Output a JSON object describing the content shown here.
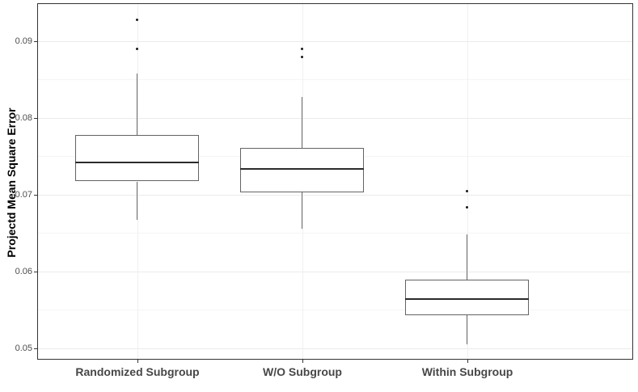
{
  "chart_data": {
    "type": "boxplot",
    "title": "",
    "xlabel": "",
    "ylabel": "Projectd Mean Square Error",
    "categories": [
      "Randomized Subgroup",
      "W/O Subgroup",
      "Within Subgroup"
    ],
    "y_ticks": [
      0.05,
      0.06,
      0.07,
      0.08,
      0.09
    ],
    "y_tick_labels": [
      "0.05",
      "0.06",
      "0.07",
      "0.08",
      "0.09"
    ],
    "y_minor_ticks": [
      0.055,
      0.065,
      0.075,
      0.085
    ],
    "ylim": [
      0.0486,
      0.0948
    ],
    "grid": "horizontal major and minor lines, faint vertical line at each category",
    "legend": "none",
    "boxes": [
      {
        "category": "Randomized Subgroup",
        "lower_whisker": 0.0667,
        "q1": 0.0717,
        "median": 0.0742,
        "q3": 0.0778,
        "upper_whisker": 0.0857,
        "outliers": [
          0.089,
          0.0927
        ]
      },
      {
        "category": "W/O Subgroup",
        "lower_whisker": 0.0655,
        "q1": 0.0703,
        "median": 0.0733,
        "q3": 0.0761,
        "upper_whisker": 0.0827,
        "outliers": [
          0.0879,
          0.089
        ]
      },
      {
        "category": "Within Subgroup",
        "lower_whisker": 0.0505,
        "q1": 0.0543,
        "median": 0.0564,
        "q3": 0.0589,
        "upper_whisker": 0.0648,
        "outliers": [
          0.0683,
          0.0704
        ]
      }
    ],
    "colors": {
      "background": "#ffffff",
      "panel_border": "#333333",
      "grid_major": "#ebebeb",
      "grid_minor": "#f5f5f5",
      "grid_vertical": "#f0f0f0",
      "box_fill": "#ffffff",
      "box_border": "#636363",
      "median": "#2b2b2b",
      "whisker": "#6b6b6b",
      "outlier": "#1a1a1a",
      "tick_label": "#4d4d4d",
      "category_label": "#474747",
      "axis_title": "#000000"
    }
  }
}
